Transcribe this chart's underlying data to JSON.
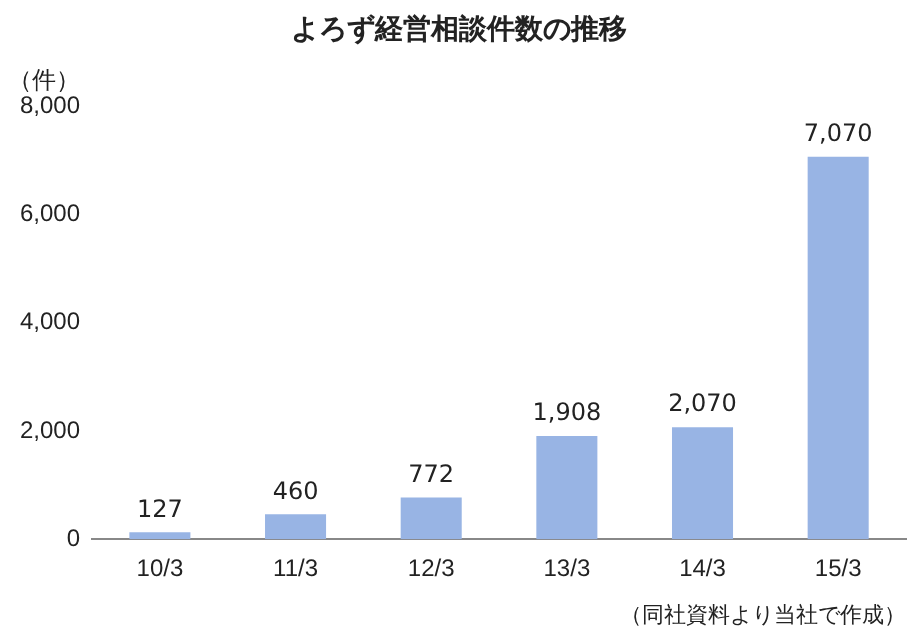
{
  "chart_data": {
    "type": "bar",
    "title": "よろず経営相談件数の推移",
    "ylabel": "（件）",
    "annotations": [
      "（同社資料より当社で作成）"
    ],
    "categories": [
      "10/3",
      "11/3",
      "12/3",
      "13/3",
      "14/3",
      "15/3"
    ],
    "values": [
      127,
      460,
      772,
      1908,
      2070,
      7070
    ],
    "color": "#98b4e4",
    "value_labels": [
      "127",
      "460",
      "772",
      "1,908",
      "2,070",
      "7,070"
    ],
    "ylim": [
      0,
      8000
    ],
    "yticks": [
      0,
      {
        "value": 2000,
        "label": "2,000"
      },
      {
        "value": 4000,
        "label": "4,000"
      },
      {
        "value": 6000,
        "label": "6,000"
      },
      {
        "value": 8000,
        "label": "8,000"
      }
    ],
    "grid": false,
    "legend": false
  }
}
